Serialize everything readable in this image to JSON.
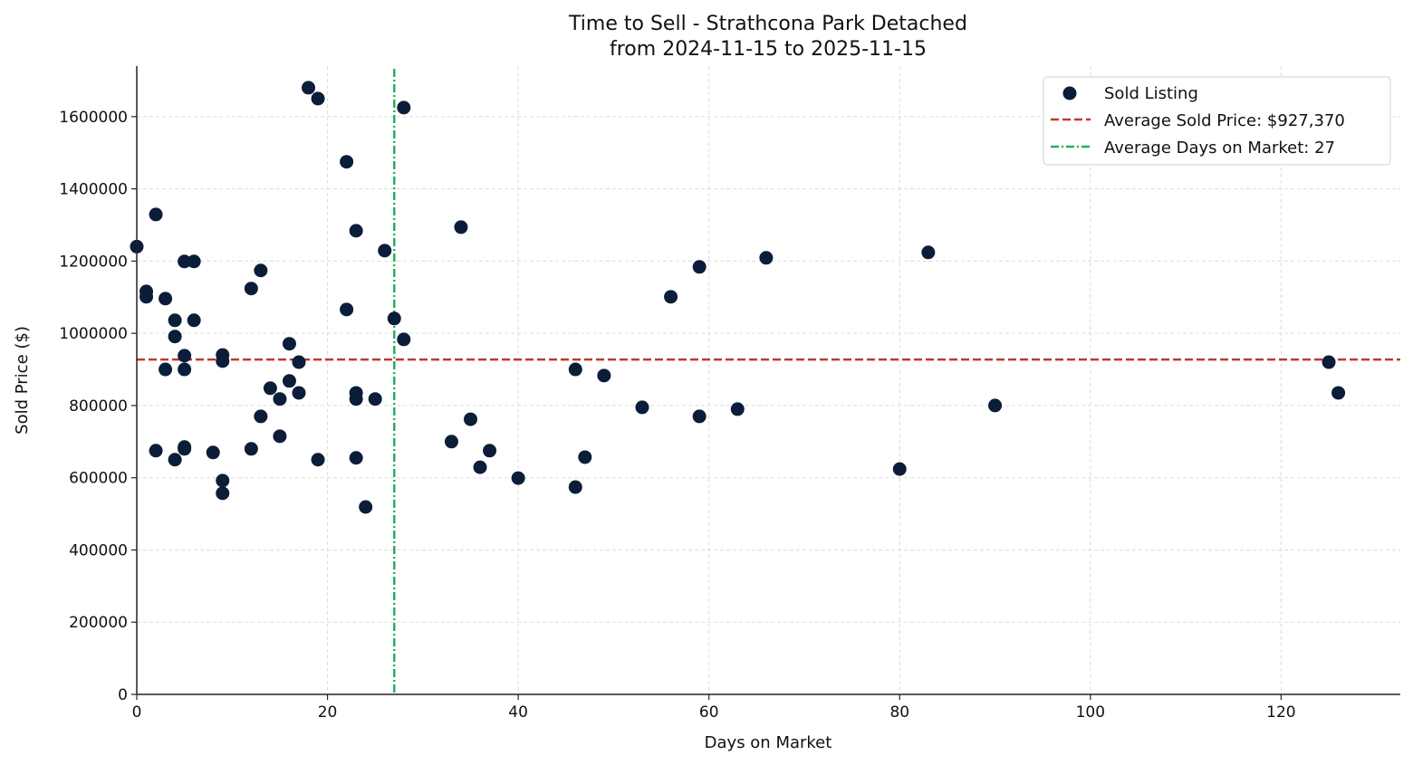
{
  "chart_data": {
    "type": "scatter",
    "title": "Time to Sell - Strathcona Park Detached",
    "subtitle": "from 2024-11-15 to 2025-11-15",
    "xlabel": "Days on Market",
    "ylabel": "Sold Price ($)",
    "xlim": [
      0,
      132.5
    ],
    "ylim": [
      0,
      1740000
    ],
    "xticks": [
      0,
      20,
      40,
      60,
      80,
      100,
      120
    ],
    "yticks": [
      0,
      200000,
      400000,
      600000,
      800000,
      1000000,
      1200000,
      1400000,
      1600000
    ],
    "grid": true,
    "legend_position": "top-right",
    "colors": {
      "points": "#0b1d38",
      "avg_price": "#c0392b",
      "avg_days": "#27ae60"
    },
    "series": [
      {
        "name": "Sold Listing",
        "points": [
          [
            0,
            1240000
          ],
          [
            1,
            1116000
          ],
          [
            1,
            1101000
          ],
          [
            2,
            1329000
          ],
          [
            2,
            675000
          ],
          [
            3,
            1096000
          ],
          [
            3,
            900000
          ],
          [
            4,
            1036000
          ],
          [
            4,
            991000
          ],
          [
            4,
            650000
          ],
          [
            5,
            1199000
          ],
          [
            5,
            938000
          ],
          [
            5,
            900000
          ],
          [
            5,
            685000
          ],
          [
            5,
            680000
          ],
          [
            6,
            1199000
          ],
          [
            6,
            1036000
          ],
          [
            8,
            670000
          ],
          [
            9,
            940000
          ],
          [
            9,
            923000
          ],
          [
            9,
            592000
          ],
          [
            9,
            557000
          ],
          [
            12,
            1124000
          ],
          [
            12,
            680000
          ],
          [
            13,
            1174000
          ],
          [
            13,
            770000
          ],
          [
            14,
            848000
          ],
          [
            15,
            818000
          ],
          [
            15,
            715000
          ],
          [
            16,
            971000
          ],
          [
            16,
            868000
          ],
          [
            17,
            920000
          ],
          [
            17,
            835000
          ],
          [
            18,
            1680000
          ],
          [
            19,
            1650000
          ],
          [
            19,
            650000
          ],
          [
            22,
            1475000
          ],
          [
            22,
            1066000
          ],
          [
            23,
            1284000
          ],
          [
            23,
            835000
          ],
          [
            23,
            818000
          ],
          [
            23,
            655000
          ],
          [
            24,
            519000
          ],
          [
            25,
            818000
          ],
          [
            26,
            1229000
          ],
          [
            27,
            1041000
          ],
          [
            28,
            1625000
          ],
          [
            28,
            983000
          ],
          [
            33,
            700000
          ],
          [
            34,
            1294000
          ],
          [
            35,
            762000
          ],
          [
            36,
            629000
          ],
          [
            37,
            675000
          ],
          [
            40,
            599000
          ],
          [
            46,
            900000
          ],
          [
            46,
            574000
          ],
          [
            47,
            657000
          ],
          [
            49,
            883000
          ],
          [
            53,
            795000
          ],
          [
            56,
            1101000
          ],
          [
            59,
            1184000
          ],
          [
            59,
            770000
          ],
          [
            63,
            790000
          ],
          [
            66,
            1209000
          ],
          [
            80,
            624000
          ],
          [
            83,
            1224000
          ],
          [
            90,
            800000
          ],
          [
            125,
            920000
          ],
          [
            126,
            835000
          ]
        ]
      }
    ],
    "reference_lines": [
      {
        "name": "Average Sold Price: $927,370",
        "orientation": "horizontal",
        "value": 927370,
        "style": "dashed"
      },
      {
        "name": "Average Days on Market: 27",
        "orientation": "vertical",
        "value": 27,
        "style": "dashdot"
      }
    ]
  }
}
